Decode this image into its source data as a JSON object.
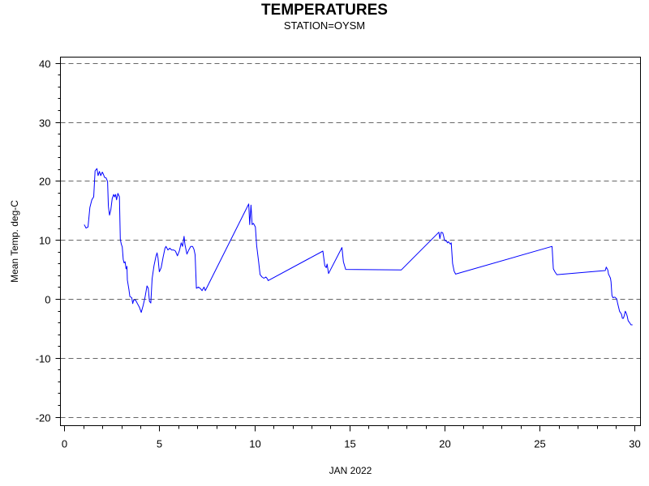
{
  "chart_data": {
    "type": "line",
    "title": "TEMPERATURES",
    "subtitle": "STATION=OYSM",
    "xlabel": "JAN 2022",
    "ylabel": "Mean Temp. deg-C",
    "xlim": [
      -0.2,
      30.3
    ],
    "ylim": [
      -21.5,
      41
    ],
    "x_ticks": [
      0,
      5,
      10,
      15,
      20,
      25,
      30
    ],
    "y_ticks": [
      -20,
      -10,
      0,
      10,
      20,
      30,
      40
    ],
    "grid": "horizontal dashed",
    "series": [
      {
        "color": "#0000ff",
        "points": [
          [
            1.05,
            12.6
          ],
          [
            1.15,
            12.0
          ],
          [
            1.25,
            12.2
          ],
          [
            1.35,
            15.5
          ],
          [
            1.45,
            16.8
          ],
          [
            1.55,
            17.3
          ],
          [
            1.62,
            21.7
          ],
          [
            1.72,
            22.1
          ],
          [
            1.78,
            20.9
          ],
          [
            1.85,
            21.6
          ],
          [
            1.92,
            20.9
          ],
          [
            2.0,
            21.5
          ],
          [
            2.05,
            21.2
          ],
          [
            2.12,
            20.6
          ],
          [
            2.2,
            20.5
          ],
          [
            2.28,
            19.9
          ],
          [
            2.32,
            15.7
          ],
          [
            2.38,
            14.2
          ],
          [
            2.45,
            15.1
          ],
          [
            2.52,
            17.0
          ],
          [
            2.6,
            17.7
          ],
          [
            2.65,
            17.3
          ],
          [
            2.7,
            17.7
          ],
          [
            2.75,
            16.8
          ],
          [
            2.82,
            17.9
          ],
          [
            2.9,
            17.3
          ],
          [
            2.95,
            10.1
          ],
          [
            3.0,
            9.3
          ],
          [
            3.05,
            8.8
          ],
          [
            3.1,
            6.7
          ],
          [
            3.15,
            6.1
          ],
          [
            3.2,
            6.3
          ],
          [
            3.25,
            5.1
          ],
          [
            3.3,
            5.5
          ],
          [
            3.32,
            3.2
          ],
          [
            3.4,
            1.6
          ],
          [
            3.45,
            0.4
          ],
          [
            3.55,
            0.2
          ],
          [
            3.6,
            -0.8
          ],
          [
            3.65,
            -0.2
          ],
          [
            3.75,
            -0.2
          ],
          [
            3.85,
            -0.8
          ],
          [
            3.95,
            -1.4
          ],
          [
            4.05,
            -2.3
          ],
          [
            4.15,
            -1.1
          ],
          [
            4.25,
            0.3
          ],
          [
            4.35,
            2.2
          ],
          [
            4.42,
            1.8
          ],
          [
            4.48,
            -0.4
          ],
          [
            4.55,
            -0.7
          ],
          [
            4.62,
            3.4
          ],
          [
            4.72,
            5.6
          ],
          [
            4.82,
            7.2
          ],
          [
            4.88,
            7.8
          ],
          [
            4.93,
            6.9
          ],
          [
            5.0,
            4.6
          ],
          [
            5.1,
            5.3
          ],
          [
            5.2,
            7.1
          ],
          [
            5.3,
            8.6
          ],
          [
            5.35,
            8.9
          ],
          [
            5.45,
            8.3
          ],
          [
            5.55,
            8.6
          ],
          [
            5.65,
            8.3
          ],
          [
            5.75,
            8.3
          ],
          [
            5.85,
            8.1
          ],
          [
            5.95,
            7.3
          ],
          [
            6.05,
            8.1
          ],
          [
            6.15,
            9.5
          ],
          [
            6.22,
            8.9
          ],
          [
            6.3,
            10.6
          ],
          [
            6.35,
            9.2
          ],
          [
            6.45,
            7.6
          ],
          [
            6.55,
            8.3
          ],
          [
            6.65,
            8.9
          ],
          [
            6.75,
            8.9
          ],
          [
            6.82,
            8.4
          ],
          [
            6.88,
            7.5
          ],
          [
            6.95,
            1.8
          ],
          [
            7.05,
            2.0
          ],
          [
            7.15,
            1.8
          ],
          [
            7.25,
            1.4
          ],
          [
            7.35,
            2.0
          ],
          [
            7.42,
            1.4
          ],
          [
            9.7,
            16.1
          ],
          [
            9.75,
            12.6
          ],
          [
            9.82,
            15.9
          ],
          [
            9.88,
            12.6
          ],
          [
            9.95,
            12.8
          ],
          [
            10.05,
            12.2
          ],
          [
            10.12,
            9.0
          ],
          [
            10.22,
            6.3
          ],
          [
            10.3,
            4.1
          ],
          [
            10.4,
            3.7
          ],
          [
            10.5,
            3.5
          ],
          [
            10.6,
            3.7
          ],
          [
            10.68,
            3.4
          ],
          [
            10.72,
            3.1
          ],
          [
            13.6,
            8.1
          ],
          [
            13.7,
            5.6
          ],
          [
            13.78,
            5.3
          ],
          [
            13.82,
            5.9
          ],
          [
            13.9,
            4.3
          ],
          [
            14.6,
            8.7
          ],
          [
            14.68,
            6.3
          ],
          [
            14.8,
            5.0
          ],
          [
            17.72,
            4.9
          ],
          [
            19.7,
            11.3
          ],
          [
            19.75,
            10.2
          ],
          [
            19.82,
            11.3
          ],
          [
            19.9,
            11.2
          ],
          [
            19.95,
            10.6
          ],
          [
            20.0,
            9.9
          ],
          [
            20.1,
            9.8
          ],
          [
            20.15,
            9.5
          ],
          [
            20.2,
            9.7
          ],
          [
            20.3,
            9.3
          ],
          [
            20.35,
            9.5
          ],
          [
            20.42,
            6.0
          ],
          [
            20.5,
            4.7
          ],
          [
            20.58,
            4.2
          ],
          [
            25.65,
            8.9
          ],
          [
            25.72,
            5.1
          ],
          [
            25.8,
            4.6
          ],
          [
            25.9,
            4.1
          ],
          [
            28.45,
            4.8
          ],
          [
            28.5,
            5.4
          ],
          [
            28.58,
            4.9
          ],
          [
            28.62,
            4.2
          ],
          [
            28.68,
            3.8
          ],
          [
            28.72,
            3.5
          ],
          [
            28.75,
            2.9
          ],
          [
            28.8,
            0.6
          ],
          [
            28.85,
            0.2
          ],
          [
            28.95,
            0.3
          ],
          [
            29.05,
            0.0
          ],
          [
            29.1,
            -0.8
          ],
          [
            29.15,
            -1.4
          ],
          [
            29.2,
            -2.1
          ],
          [
            29.3,
            -2.6
          ],
          [
            29.35,
            -3.3
          ],
          [
            29.4,
            -3.3
          ],
          [
            29.45,
            -2.8
          ],
          [
            29.5,
            -2.1
          ],
          [
            29.55,
            -2.4
          ],
          [
            29.6,
            -2.9
          ],
          [
            29.65,
            -3.7
          ],
          [
            29.72,
            -4.0
          ],
          [
            29.8,
            -4.4
          ],
          [
            29.88,
            -4.4
          ]
        ]
      }
    ]
  }
}
